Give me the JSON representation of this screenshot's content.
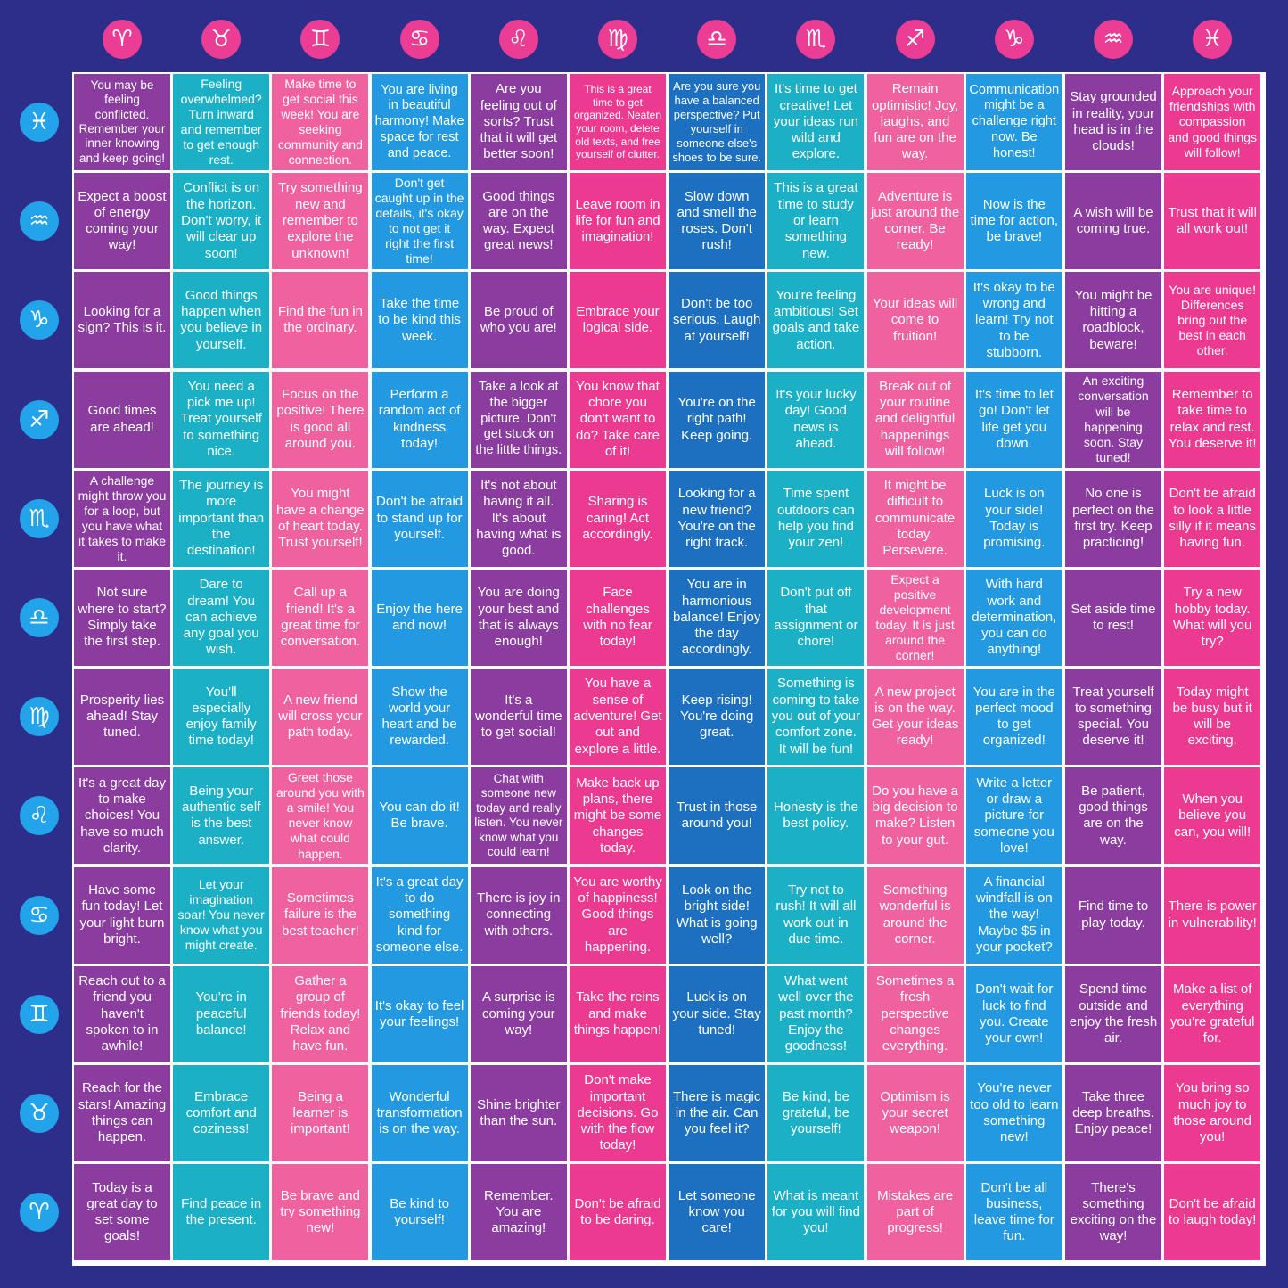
{
  "column_signs": [
    "♈",
    "♉",
    "♊",
    "♋",
    "♌",
    "♍",
    "♎",
    "♏",
    "♐",
    "♑",
    "♒",
    "♓"
  ],
  "row_signs": [
    "♓",
    "♒",
    "♑",
    "♐",
    "♏",
    "♎",
    "♍",
    "♌",
    "♋",
    "♊",
    "♉",
    "♈"
  ],
  "grid": {
    "rows": [
      [
        "You may be feeling conflicted. Remember your inner knowing and keep going!",
        "Feeling overwhelmed? Turn inward and remember to get enough rest.",
        "Make time to get social this week! You are seeking community and connection.",
        "You are living in beautiful harmony! Make space for rest and peace.",
        "Are you feeling out of sorts? Trust that it will get better soon!",
        "This is a great time to get organized. Neaten your room, delete old texts, and free yourself of clutter.",
        "Are you sure you have a balanced perspective? Put yourself in someone else's shoes to be sure.",
        "It's time to get creative! Let your ideas run wild and explore.",
        "Remain optimistic! Joy, laughs, and fun are on the way.",
        "Communication might be a challenge right now. Be honest!",
        "Stay grounded in reality, your head is in the clouds!",
        "Approach your friendships with compassion and good things will follow!"
      ],
      [
        "Expect a boost of energy coming your way!",
        "Conflict is on the horizon. Don't worry, it will clear up soon!",
        "Try something new and remember to explore the unknown!",
        "Don't get caught up in the details, it's okay to not get it right the first time!",
        "Good things are on the way. Expect great news!",
        "Leave room in life for fun and imagination!",
        "Slow down and smell the roses. Don't rush!",
        "This is a great time to study or learn something new.",
        "Adventure is just around the corner. Be ready!",
        "Now is the time for action, be brave!",
        "A wish will be coming true.",
        "Trust that it will all work out!"
      ],
      [
        "Looking for a sign? This is it.",
        "Good things happen when you believe in yourself.",
        "Find the fun in the ordinary.",
        "Take the time to be kind this week.",
        "Be proud of who you are!",
        "Embrace your logical side.",
        "Don't be too serious. Laugh at yourself!",
        "You're feeling ambitious! Set goals and take action.",
        "Your ideas will come to fruition!",
        "It's okay to be wrong and learn! Try not to be stubborn.",
        "You might be hitting a roadblock, beware!",
        "You are unique! Differences bring out the best in each other."
      ],
      [
        "Good times are ahead!",
        "You need a pick me up! Treat yourself to something nice.",
        "Focus on the positive! There is good all around you.",
        "Perform a random act of kindness today!",
        "Take a look at the bigger picture. Don't get stuck on the little things.",
        "You know that chore you don't want to do? Take care of it!",
        "You're on the right path! Keep going.",
        "It's your lucky day! Good news is ahead.",
        "Break out of your routine and delightful happenings will follow!",
        "It's time to let go! Don't let life get you down.",
        "An exciting conversation will be happening soon. Stay tuned!",
        "Remember to take time to relax and rest. You deserve it!"
      ],
      [
        "A challenge might throw you for a loop, but you have what it takes to make it.",
        "The journey is more important than the destination!",
        "You might have a change of heart today. Trust yourself!",
        "Don't be afraid to stand up for yourself.",
        "It's not about having it all. It's about having what is good.",
        "Sharing is caring! Act accordingly.",
        "Looking for a new friend? You're on the right track.",
        "Time spent outdoors can help you find your zen!",
        "It might be difficult to communicate today. Persevere.",
        "Luck is on your side! Today is promising.",
        "No one is perfect on the first try. Keep practicing!",
        "Don't be afraid to look a little silly if it means having fun."
      ],
      [
        "Not sure where to start? Simply take the first step.",
        "Dare to dream! You can achieve any goal you wish.",
        "Call up a friend! It's a great time for conversation.",
        "Enjoy the here and now!",
        "You are doing your best and that is always enough!",
        "Face challenges with no fear today!",
        "You are in harmonious balance! Enjoy the day accordingly.",
        "Don't put off that assignment or chore!",
        "Expect a positive development today. It is just around the corner!",
        "With hard work and determination, you can do anything!",
        "Set aside time to rest!",
        "Try a new hobby today. What will you try?"
      ],
      [
        "Prosperity lies ahead! Stay tuned.",
        "You'll especially enjoy family time today!",
        "A new friend will cross your path today.",
        "Show the world your heart and be rewarded.",
        "It's a wonderful time to get social!",
        "You have a sense of adventure! Get out and explore a little.",
        "Keep rising! You're doing great.",
        "Something is coming to take you out of your comfort zone. It will be fun!",
        "A new project is on the way. Get your ideas ready!",
        "You are in the perfect mood to get organized!",
        "Treat yourself to something special. You deserve it!",
        "Today might be busy but it will be exciting."
      ],
      [
        "It's a great day to make choices! You have so much clarity.",
        "Being your authentic self is the best answer.",
        "Greet those around you with a smile! You never know what could happen.",
        "You can do it! Be brave.",
        "Chat with someone new today and really listen. You never know what you could learn!",
        "Make back up plans, there might be some changes today.",
        "Trust in those around you!",
        "Honesty is the best policy.",
        "Do you have a big decision to make? Listen to your gut.",
        "Write a letter or draw a picture for someone you love!",
        "Be patient, good things are on the way.",
        "When you believe you can, you will!"
      ],
      [
        "Have some fun today! Let your light burn bright.",
        "Let your imagination soar! You never know what you might create.",
        "Sometimes failure is the best teacher!",
        "It's a great day to do something kind for someone else.",
        "There is joy in connecting with others.",
        "You are worthy of happiness! Good things are happening.",
        "Look on the bright side! What is going well?",
        "Try not to rush! It will all work out in due time.",
        "Something wonderful is around the corner.",
        "A financial windfall is on the way! Maybe $5 in your pocket?",
        "Find time to play today.",
        "There is power in vulnerability!"
      ],
      [
        "Reach out to a friend you haven't spoken to in awhile!",
        "You're in peaceful balance!",
        "Gather a group of friends today! Relax and have fun.",
        "It's okay to feel your feelings!",
        "A surprise is coming your way!",
        "Take the reins and make things happen!",
        "Luck is on your side. Stay tuned!",
        "What went well over the past month? Enjoy the goodness!",
        "Sometimes a fresh perspective changes everything.",
        "Don't wait for luck to find you. Create your own!",
        "Spend time outside and enjoy the fresh air.",
        "Make a list of everything you're grateful for."
      ],
      [
        "Reach for the stars! Amazing things can happen.",
        "Embrace comfort and coziness!",
        "Being a learner is important!",
        "Wonderful transformation is on the way.",
        "Shine brighter than the sun.",
        "Don't make important decisions. Go with the flow today!",
        "There is magic in the air. Can you feel it?",
        "Be kind, be grateful, be yourself!",
        "Optimism is your secret weapon!",
        "You're never too old to learn something new!",
        "Take three deep breaths. Enjoy peace!",
        "You bring so much joy to those around you!"
      ],
      [
        "Today is a great day to set some goals!",
        "Find peace in the present.",
        "Be brave and try something new!",
        "Be kind to yourself!",
        "Remember. You are amazing!",
        "Don't be afraid to be daring.",
        "Let someone know you care!",
        "What is meant for you will find you!",
        "Mistakes are part of progress!",
        "Don't be all business, leave time for fun.",
        "There's something exciting on the way!",
        "Don't be afraid to laugh today!"
      ]
    ]
  }
}
